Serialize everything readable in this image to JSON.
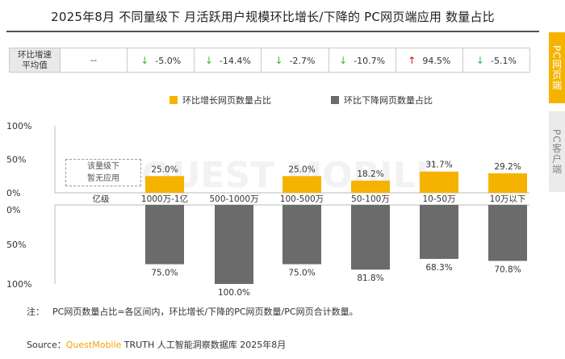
{
  "title": "2025年8月 不同量级下 月活跃用户规模环比增长/下降的 PC网页端应用 数量占比",
  "side_tabs": {
    "active": "PC网页端",
    "inactive": "PC客户端"
  },
  "avg_row": {
    "header_line1": "环比增速",
    "header_line2": "平均值",
    "cells": [
      {
        "text": "--",
        "arrow": ""
      },
      {
        "text": "-5.0%",
        "arrow": "↓"
      },
      {
        "text": "-14.4%",
        "arrow": "↓"
      },
      {
        "text": "-2.7%",
        "arrow": "↓"
      },
      {
        "text": "-10.7%",
        "arrow": "↓"
      },
      {
        "text": "94.5%",
        "arrow": "↑"
      },
      {
        "text": "-5.1%",
        "arrow": "↓"
      }
    ]
  },
  "empty_note": {
    "line1": "该量级下",
    "line2": "暂无应用"
  },
  "footnote": {
    "label": "注：",
    "text": "PC网页数量占比=各区间内，环比增长/下降的PC网页数量/PC网页合计数量。"
  },
  "source": {
    "prefix": "Source：",
    "brand": "QuestMobile",
    "suffix": " TRUTH 人工智能洞察数据库 2025年8月"
  },
  "watermark": "QUEST MOBILE",
  "colors": {
    "increase": "#f5b300",
    "decrease": "#6b6b6b",
    "axis_label": "#333333"
  },
  "chart_data": {
    "type": "bar",
    "categories": [
      "亿级",
      "1000万-1亿",
      "500-1000万",
      "100-500万",
      "50-100万",
      "10-50万",
      "10万以下"
    ],
    "series": [
      {
        "name": "环比增长网页数量占比",
        "values": [
          null,
          25.0,
          null,
          25.0,
          18.2,
          31.7,
          29.2
        ],
        "labels": [
          "",
          "25.0%",
          "",
          "25.0%",
          "18.2%",
          "31.7%",
          "29.2%"
        ]
      },
      {
        "name": "环比下降网页数量占比",
        "values": [
          null,
          75.0,
          100.0,
          75.0,
          81.8,
          68.3,
          70.8
        ],
        "labels": [
          "",
          "75.0%",
          "100.0%",
          "75.0%",
          "81.8%",
          "68.3%",
          "70.8%"
        ]
      }
    ],
    "upper_ticks": [
      "100%",
      "50%",
      "0%"
    ],
    "lower_ticks": [
      "0%",
      "50%",
      "100%"
    ],
    "ylim": [
      0,
      100
    ],
    "legend_position": "top-center"
  }
}
